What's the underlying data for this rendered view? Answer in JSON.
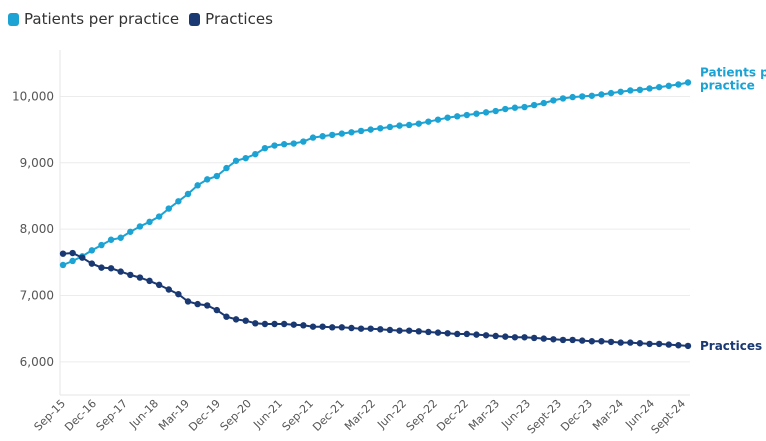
{
  "chart_data": {
    "type": "line",
    "title": "",
    "xlabel": "",
    "ylabel": "",
    "ylim": [
      5500,
      10700
    ],
    "y_ticks": [
      6000,
      7000,
      8000,
      9000,
      10000
    ],
    "y_tick_labels": [
      "6,000",
      "7,000",
      "8,000",
      "9,000",
      "10,000"
    ],
    "x_tick_labels": [
      "Sep-15",
      "Dec-16",
      "Sep-17",
      "Jun-18",
      "Mar-19",
      "Dec-19",
      "Sep-20",
      "Jun-21",
      "Sep-21",
      "Dec-21",
      "Mar-22",
      "Jun-22",
      "Sep-22",
      "Dec-22",
      "Mar-23",
      "Jun-23",
      "Sept-23",
      "Dec-23",
      "Mar-24",
      "Jun-24",
      "Sept-24"
    ],
    "legend_position": "top-left",
    "grid": true,
    "series": [
      {
        "name": "Patients per practice",
        "end_label": "Patients per practice",
        "color": "#1ca3d3",
        "values": [
          7460,
          7520,
          7590,
          7680,
          7760,
          7840,
          7870,
          7960,
          8040,
          8110,
          8190,
          8310,
          8420,
          8530,
          8660,
          8750,
          8800,
          8920,
          9030,
          9070,
          9130,
          9220,
          9260,
          9280,
          9290,
          9320,
          9380,
          9400,
          9420,
          9440,
          9460,
          9480,
          9500,
          9520,
          9540,
          9560,
          9570,
          9590,
          9620,
          9650,
          9680,
          9700,
          9720,
          9740,
          9760,
          9780,
          9810,
          9830,
          9840,
          9870,
          9900,
          9940,
          9970,
          9990,
          10000,
          10010,
          10030,
          10050,
          10070,
          10090,
          10100,
          10120,
          10140,
          10160,
          10180,
          10210
        ]
      },
      {
        "name": "Practices",
        "end_label": "Practices",
        "color": "#1a3872",
        "values": [
          7630,
          7640,
          7570,
          7480,
          7420,
          7410,
          7360,
          7310,
          7270,
          7220,
          7160,
          7090,
          7020,
          6910,
          6870,
          6850,
          6780,
          6680,
          6640,
          6620,
          6580,
          6570,
          6570,
          6570,
          6560,
          6550,
          6530,
          6530,
          6520,
          6520,
          6510,
          6500,
          6500,
          6490,
          6480,
          6470,
          6470,
          6460,
          6450,
          6440,
          6430,
          6420,
          6420,
          6410,
          6400,
          6390,
          6380,
          6370,
          6370,
          6360,
          6350,
          6340,
          6330,
          6330,
          6320,
          6310,
          6310,
          6300,
          6290,
          6290,
          6280,
          6270,
          6270,
          6260,
          6250,
          6240
        ]
      }
    ]
  }
}
